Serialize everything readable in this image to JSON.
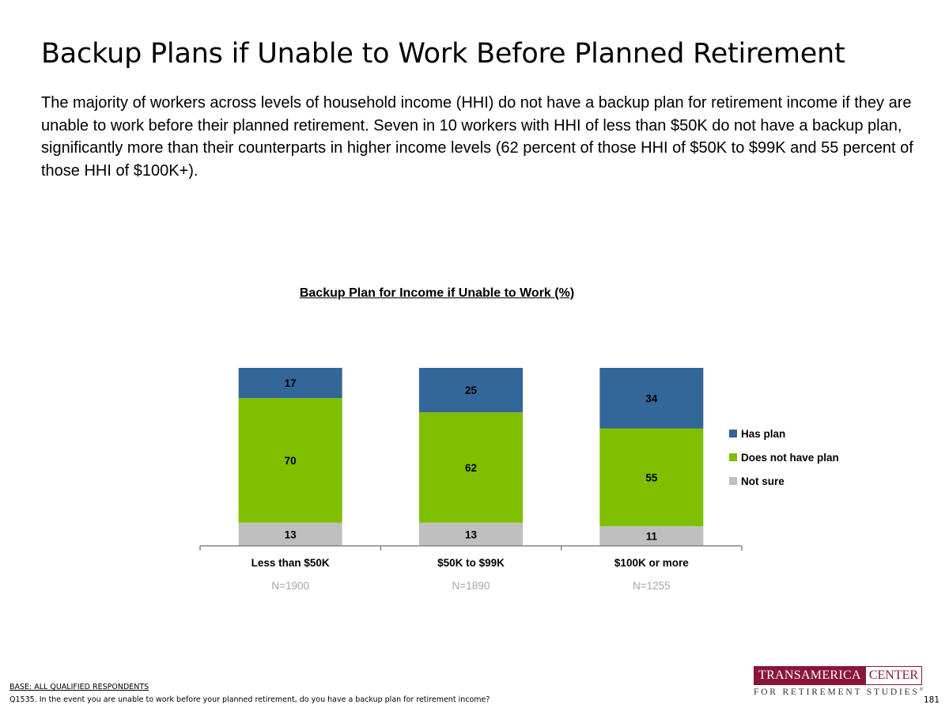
{
  "page": {
    "title": "Backup Plans if Unable to Work Before Planned Retirement",
    "summary": "The majority of workers across levels of household income (HHI) do not have a backup plan for retirement income if they are unable to work before their planned retirement. Seven in 10 workers with HHI of less than $50K do not have a backup plan, significantly more than their counterparts in higher income levels (62 percent of those HHI of $50K to $99K and 55 percent of those HHI of $100K+).",
    "base_label": "BASE: ALL QUALIFIED RESPONDENTS",
    "question": "Q1535. In the event you are unable to work before your planned retirement, do you have a backup plan for retirement income?",
    "page_number": "181"
  },
  "logo": {
    "word_red": "TRANSAMERICA",
    "word_white": "CENTER",
    "tagline": "FOR RETIREMENT STUDIES",
    "mark": "®"
  },
  "chart_data": {
    "type": "bar",
    "stacked": true,
    "title": "Backup Plan for Income if Unable to Work (%)",
    "categories": [
      "Less than $50K",
      "$50K to $99K",
      "$100K or more"
    ],
    "sample_sizes": [
      "N=1900",
      "N=1890",
      "N=1255"
    ],
    "series": [
      {
        "name": "Not sure",
        "values": [
          13,
          13,
          11
        ],
        "color": "#bfbfbf"
      },
      {
        "name": "Does not have plan",
        "values": [
          70,
          62,
          55
        ],
        "color": "#7fbf00"
      },
      {
        "name": "Has plan",
        "values": [
          17,
          25,
          34
        ],
        "color": "#336699"
      }
    ],
    "legend_order": [
      "Has plan",
      "Does not have plan",
      "Not sure"
    ],
    "ylim": [
      0,
      100
    ],
    "legend_position": "right",
    "grid": false
  }
}
